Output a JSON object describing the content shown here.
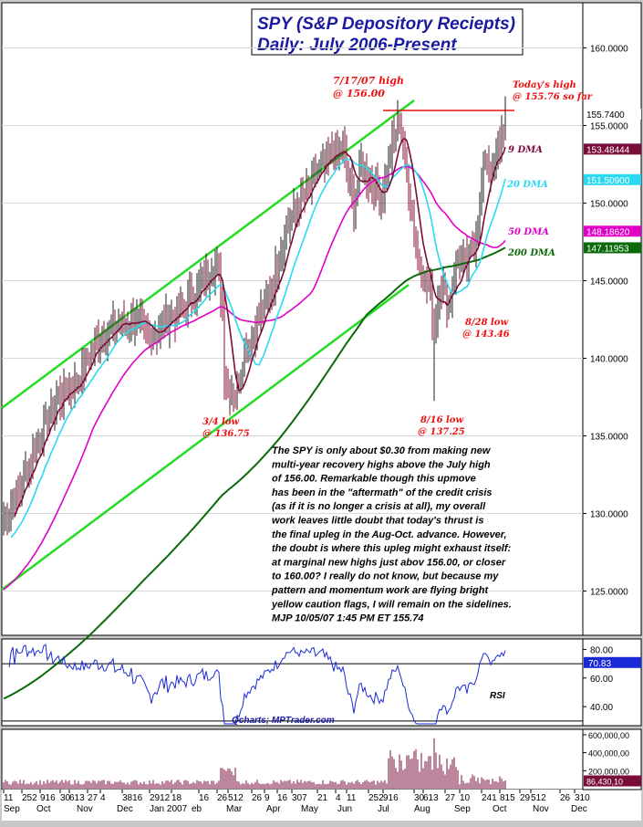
{
  "chart_data": {
    "type": "bar",
    "title_line1": "SPY (S&P Depository Reciepts)",
    "title_line2": "Daily: July 2006-Present",
    "price_ticks": [
      "160.0000",
      "155.0000",
      "150.0000",
      "145.0000",
      "140.0000",
      "135.0000",
      "130.0000",
      "125.0000"
    ],
    "price_tick_values": [
      160,
      155,
      150,
      145,
      140,
      135,
      130,
      125
    ],
    "price_range": [
      122.5,
      162.5
    ],
    "price_boxes": [
      {
        "label": "155.7400",
        "value": 155.74,
        "bg": "#ffffff",
        "fg": "#000000"
      },
      {
        "label": "153.48444",
        "value": 153.48,
        "bg": "#7a0c3a",
        "fg": "#ffffff"
      },
      {
        "label": "151.50900",
        "value": 151.51,
        "bg": "#2ad8f0",
        "fg": "#ffffff"
      },
      {
        "label": "148.18620",
        "value": 148.19,
        "bg": "#e000c8",
        "fg": "#ffffff"
      },
      {
        "label": "147.11953",
        "value": 147.12,
        "bg": "#0a6a0a",
        "fg": "#ffffff"
      }
    ],
    "legend": [
      {
        "label": "9 DMA",
        "color": "#7a0c3a"
      },
      {
        "label": "20 DMA",
        "color": "#2ad8f0"
      },
      {
        "label": "50 DMA",
        "color": "#e000c8"
      },
      {
        "label": "200 DMA",
        "color": "#0a6a0a"
      }
    ],
    "annotations": [
      {
        "lines": [
          "7/17/07 high",
          "@ 156.00"
        ]
      },
      {
        "lines": [
          "Today's high",
          "@ 155.76 so far"
        ]
      },
      {
        "lines": [
          "3/4 low",
          "@ 136.75"
        ]
      },
      {
        "lines": [
          "8/16 low",
          "@ 137.25"
        ]
      },
      {
        "lines": [
          "8/28 low",
          "@ 143.46"
        ]
      }
    ],
    "commentary": [
      "The SPY is only about $0.30 from making new",
      "multi-year recovery highs above the July high",
      "of 156.00. Remarkable though this upmove",
      "has been in the \"aftermath\" of the credit crisis",
      "(as if it is no longer a crisis at all), my overall",
      "work leaves little doubt that today's thrust is",
      "the final upleg in the Aug-Oct. advance. However,",
      "the doubt is where this upleg might exhaust itself:",
      "at marginal new highs just abov 156.00, or closer",
      "to 160.00? I really do not know, but because my",
      "pattern and momentum work are flying bright",
      "yellow caution flags, I will remain on the sidelines.",
      "MJP  10/05/07 1:45 PM ET 155.74"
    ],
    "price_key_points": [
      {
        "i": 0,
        "p": 129.5
      },
      {
        "i": 10,
        "p": 132
      },
      {
        "i": 20,
        "p": 135
      },
      {
        "i": 30,
        "p": 137.5
      },
      {
        "i": 40,
        "p": 138.5
      },
      {
        "i": 50,
        "p": 141
      },
      {
        "i": 60,
        "p": 142
      },
      {
        "i": 70,
        "p": 142.5
      },
      {
        "i": 80,
        "p": 141.5
      },
      {
        "i": 90,
        "p": 142.5
      },
      {
        "i": 100,
        "p": 143.5
      },
      {
        "i": 110,
        "p": 145
      },
      {
        "i": 115,
        "p": 146
      },
      {
        "i": 118,
        "p": 145.5
      },
      {
        "i": 120,
        "p": 143
      },
      {
        "i": 121,
        "p": 139
      },
      {
        "i": 124,
        "p": 138
      },
      {
        "i": 127,
        "p": 137.5
      },
      {
        "i": 132,
        "p": 140.5
      },
      {
        "i": 138,
        "p": 142
      },
      {
        "i": 148,
        "p": 145
      },
      {
        "i": 155,
        "p": 148.5
      },
      {
        "i": 165,
        "p": 150.5
      },
      {
        "i": 172,
        "p": 152
      },
      {
        "i": 180,
        "p": 153
      },
      {
        "i": 186,
        "p": 153.5
      },
      {
        "i": 192,
        "p": 150
      },
      {
        "i": 196,
        "p": 152.5
      },
      {
        "i": 202,
        "p": 151
      },
      {
        "i": 208,
        "p": 150.5
      },
      {
        "i": 213,
        "p": 154
      },
      {
        "i": 217,
        "p": 155.2
      },
      {
        "i": 222,
        "p": 151
      },
      {
        "i": 227,
        "p": 146.5
      },
      {
        "i": 231,
        "p": 145
      },
      {
        "i": 234,
        "p": 144.5
      },
      {
        "i": 236,
        "p": 141.5
      },
      {
        "i": 239,
        "p": 145
      },
      {
        "i": 244,
        "p": 143.5
      },
      {
        "i": 249,
        "p": 146.5
      },
      {
        "i": 254,
        "p": 146
      },
      {
        "i": 259,
        "p": 148
      },
      {
        "i": 264,
        "p": 153
      },
      {
        "i": 268,
        "p": 152
      },
      {
        "i": 272,
        "p": 154
      },
      {
        "i": 275,
        "p": 155.3
      }
    ],
    "rsi_ticks": [
      "80.00",
      "60.00",
      "40.00"
    ],
    "rsi_tick_values": [
      80,
      60,
      40
    ],
    "rsi_range": [
      28,
      86
    ],
    "rsi_value_label": "70.83",
    "rsi_value": 70.83,
    "rsi_label": "RSI",
    "credit": "Qcharts; MPTrader.com",
    "volume_ticks": [
      "600,000,00",
      "400,000,00",
      "200,000,00"
    ],
    "volume_tick_values": [
      600,
      400,
      200
    ],
    "volume_value_label": "86,430,10",
    "volume_value": 86.43,
    "x_ticks": [
      {
        "label": "11",
        "i": 0
      },
      {
        "label": "252",
        "i": 10
      },
      {
        "label": "916",
        "i": 20
      },
      {
        "label": "30",
        "i": 31
      },
      {
        "label": "613",
        "i": 36
      },
      {
        "label": "27",
        "i": 46
      },
      {
        "label": "4",
        "i": 53
      },
      {
        "label": "3816",
        "i": 65
      },
      {
        "label": "2912",
        "i": 80
      },
      {
        "label": "18",
        "i": 92
      },
      {
        "label": "16",
        "i": 107
      },
      {
        "label": "26",
        "i": 117
      },
      {
        "label": "512",
        "i": 123
      },
      {
        "label": "26",
        "i": 136
      },
      {
        "label": "9",
        "i": 143
      },
      {
        "label": "16",
        "i": 150
      },
      {
        "label": "307",
        "i": 158
      },
      {
        "label": "21",
        "i": 172
      },
      {
        "label": "4",
        "i": 182
      },
      {
        "label": "11",
        "i": 188
      },
      {
        "label": "252",
        "i": 200
      },
      {
        "label": "916",
        "i": 208
      },
      {
        "label": "30",
        "i": 225
      },
      {
        "label": "613",
        "i": 230
      },
      {
        "label": "27",
        "i": 242
      },
      {
        "label": "10",
        "i": 250
      },
      {
        "label": "241",
        "i": 262
      },
      {
        "label": "815",
        "i": 272
      },
      {
        "label": "29",
        "i": 283
      },
      {
        "label": "512",
        "i": 289
      },
      {
        "label": "26",
        "i": 305
      },
      {
        "label": "310",
        "i": 313
      }
    ],
    "x_months": [
      {
        "label": "Sep",
        "i": 0
      },
      {
        "label": "Oct",
        "i": 18
      },
      {
        "label": "Nov",
        "i": 40
      },
      {
        "label": "Dec",
        "i": 62
      },
      {
        "label": "Jan 2007",
        "i": 80
      },
      {
        "label": "eb",
        "i": 103
      },
      {
        "label": "Mar",
        "i": 122
      },
      {
        "label": "Apr",
        "i": 144
      },
      {
        "label": "May",
        "i": 163
      },
      {
        "label": "Jun",
        "i": 183
      },
      {
        "label": "Jul",
        "i": 205
      },
      {
        "label": "Aug",
        "i": 225
      },
      {
        "label": "Sep",
        "i": 247
      },
      {
        "label": "Oct",
        "i": 268
      },
      {
        "label": "Nov",
        "i": 290
      },
      {
        "label": "Dec",
        "i": 311
      }
    ]
  }
}
